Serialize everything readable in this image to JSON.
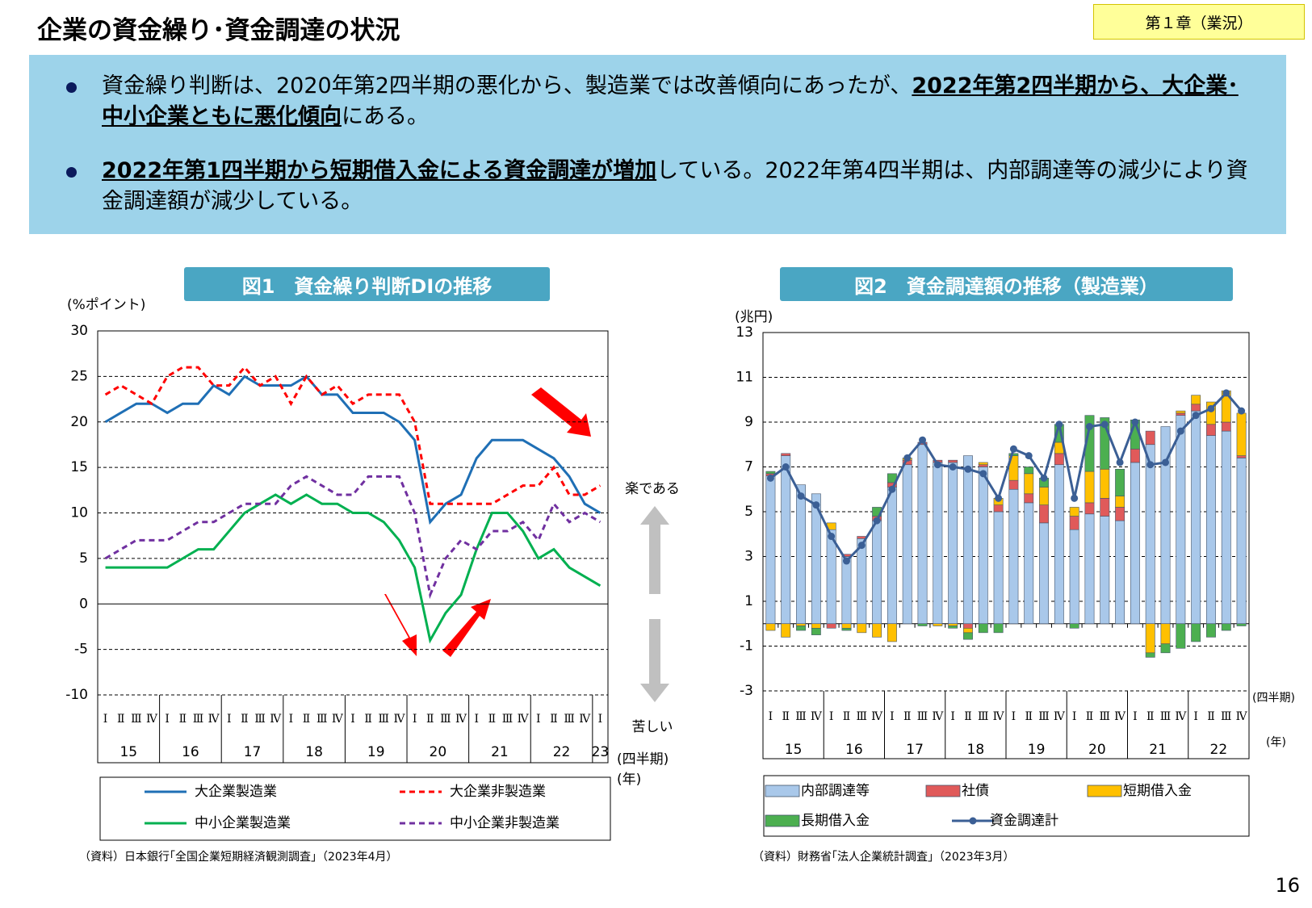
{
  "header": {
    "title": "企業の資金繰り･資金調達の状況",
    "tag": "第１章（業況）"
  },
  "bullets": [
    [
      "資金繰り判断は、2020年第2四半期の悪化から、製造業では改善傾向にあったが、",
      {
        "bold": "2022年第2四半期から、大企業･中小企業ともに悪化傾向"
      },
      "にある。"
    ],
    [
      {
        "bold": "2022年第1四半期から短期借入金による資金調達が増加"
      },
      "している。2022年第4四半期は、内部調達等の減少により資金調達額が減少している。"
    ]
  ],
  "chart_data": [
    {
      "type": "line",
      "title": "図1　資金繰り判断DIの推移",
      "y_unit": "(%ポイント)",
      "x_unit": "(四半期)",
      "x_unit2": "(年)",
      "annotations": [
        "楽である",
        "苦しい"
      ],
      "source": "（資料）日本銀行｢全国企業短期経済観測調査｣（2023年4月）",
      "categories": [
        "Ⅰ",
        "Ⅱ",
        "Ⅲ",
        "Ⅳ",
        "Ⅰ",
        "Ⅱ",
        "Ⅲ",
        "Ⅳ",
        "Ⅰ",
        "Ⅱ",
        "Ⅲ",
        "Ⅳ",
        "Ⅰ",
        "Ⅱ",
        "Ⅲ",
        "Ⅳ",
        "Ⅰ",
        "Ⅱ",
        "Ⅲ",
        "Ⅳ",
        "Ⅰ",
        "Ⅱ",
        "Ⅲ",
        "Ⅳ",
        "Ⅰ",
        "Ⅱ",
        "Ⅲ",
        "Ⅳ",
        "Ⅰ",
        "Ⅱ",
        "Ⅲ",
        "Ⅳ",
        "Ⅰ"
      ],
      "years": [
        "15",
        "16",
        "17",
        "18",
        "19",
        "20",
        "21",
        "22",
        "23"
      ],
      "ylim": [
        -10,
        30
      ],
      "yticks": [
        -10,
        -5,
        0,
        5,
        10,
        15,
        20,
        25,
        30
      ],
      "grid": true,
      "series": [
        {
          "name": "大企業製造業",
          "color": "#1f6fb5",
          "dash": false,
          "values": [
            20,
            21,
            22,
            22,
            21,
            22,
            22,
            24,
            23,
            25,
            24,
            24,
            24,
            25,
            23,
            23,
            21,
            21,
            21,
            20,
            18,
            9,
            11,
            12,
            16,
            18,
            18,
            18,
            17,
            16,
            14,
            11,
            10
          ]
        },
        {
          "name": "大企業非製造業",
          "color": "#ff0000",
          "dash": true,
          "values": [
            23,
            24,
            23,
            22,
            25,
            26,
            26,
            24,
            24,
            26,
            24,
            25,
            22,
            25,
            23,
            24,
            22,
            23,
            23,
            23,
            20,
            11,
            11,
            11,
            11,
            11,
            12,
            13,
            13,
            15,
            12,
            12,
            13
          ]
        },
        {
          "name": "中小企業製造業",
          "color": "#00b050",
          "dash": false,
          "values": [
            4,
            4,
            4,
            4,
            4,
            5,
            6,
            6,
            8,
            10,
            11,
            12,
            11,
            12,
            11,
            11,
            10,
            10,
            9,
            7,
            4,
            -4,
            -1,
            1,
            6,
            10,
            10,
            8,
            5,
            6,
            4,
            3,
            2
          ]
        },
        {
          "name": "中小企業非製造業",
          "color": "#7030a0",
          "dash": true,
          "values": [
            5,
            6,
            7,
            7,
            7,
            8,
            9,
            9,
            10,
            11,
            11,
            11,
            13,
            14,
            13,
            12,
            12,
            14,
            14,
            14,
            10,
            1,
            5,
            7,
            6,
            8,
            8,
            9,
            7,
            11,
            9,
            10,
            9
          ]
        }
      ]
    },
    {
      "type": "bar",
      "stacked": true,
      "title": "図2　資金調達額の推移（製造業）",
      "y_unit": "(兆円)",
      "x_unit": "(四半期)",
      "x_unit2": "(年)",
      "source": "（資料）財務省｢法人企業統計調査｣（2023年3月）",
      "categories": [
        "Ⅰ",
        "Ⅱ",
        "Ⅲ",
        "Ⅳ",
        "Ⅰ",
        "Ⅱ",
        "Ⅲ",
        "Ⅳ",
        "Ⅰ",
        "Ⅱ",
        "Ⅲ",
        "Ⅳ",
        "Ⅰ",
        "Ⅱ",
        "Ⅲ",
        "Ⅳ",
        "Ⅰ",
        "Ⅱ",
        "Ⅲ",
        "Ⅳ",
        "Ⅰ",
        "Ⅱ",
        "Ⅲ",
        "Ⅳ",
        "Ⅰ",
        "Ⅱ",
        "Ⅲ",
        "Ⅳ",
        "Ⅰ",
        "Ⅱ",
        "Ⅲ",
        "Ⅳ"
      ],
      "years": [
        "15",
        "16",
        "17",
        "18",
        "19",
        "20",
        "21",
        "22"
      ],
      "ylim": [
        -3,
        13
      ],
      "yticks": [
        -3,
        -1,
        1,
        3,
        5,
        7,
        9,
        11,
        13
      ],
      "grid": true,
      "series": [
        {
          "name": "内部調達等",
          "color": "#a9c8ea",
          "values": [
            6.6,
            7.5,
            6.2,
            5.8,
            4.2,
            3.0,
            3.8,
            4.6,
            6.1,
            7.1,
            8.0,
            7.2,
            7.2,
            7.5,
            7.0,
            5.0,
            6.0,
            5.4,
            4.5,
            7.1,
            4.2,
            4.9,
            4.8,
            4.6,
            7.2,
            8.0,
            8.8,
            9.3,
            9.5,
            8.4,
            8.6,
            7.4
          ]
        },
        {
          "name": "社債",
          "color": "#e05a5a",
          "values": [
            0.1,
            0.1,
            0,
            0,
            -0.2,
            0.1,
            0.1,
            0.2,
            0.2,
            0.2,
            0.1,
            0.1,
            0.1,
            -0.2,
            0.1,
            0.3,
            0.4,
            0.4,
            0.8,
            0.5,
            0.6,
            0.5,
            0.8,
            0.6,
            0.6,
            0.6,
            0,
            0.1,
            0.3,
            0.5,
            0.4,
            0.1
          ]
        },
        {
          "name": "短期借入金",
          "color": "#ffc000",
          "values": [
            -0.3,
            -0.6,
            -0.1,
            -0.2,
            0.3,
            -0.2,
            -0.4,
            -0.6,
            -0.8,
            0.1,
            0,
            -0.1,
            -0.1,
            -0.2,
            0.1,
            0.3,
            1.1,
            0.9,
            0.8,
            0.5,
            0.4,
            1.4,
            1.3,
            0.5,
            0,
            -1.3,
            -0.9,
            0.1,
            0.4,
            1.0,
            1.4,
            1.9
          ]
        },
        {
          "name": "長期借入金",
          "color": "#4caf50",
          "values": [
            0.1,
            0,
            -0.2,
            -0.3,
            0,
            -0.1,
            0,
            0.4,
            0.4,
            0,
            -0.1,
            0,
            -0.1,
            -0.3,
            -0.4,
            -0.4,
            0.1,
            0.3,
            0.4,
            0.8,
            -0.2,
            2.5,
            2.3,
            1.2,
            1.3,
            -0.2,
            -0.4,
            -1.1,
            -0.8,
            -0.6,
            -0.3,
            -0.1
          ]
        },
        {
          "name": "資金調達計",
          "type": "line",
          "color": "#3b5f95",
          "values": [
            6.5,
            7.0,
            5.7,
            5.3,
            3.9,
            2.8,
            3.5,
            4.6,
            6.0,
            7.4,
            8.2,
            7.1,
            7.0,
            6.9,
            6.7,
            5.6,
            7.8,
            7.5,
            6.5,
            8.9,
            5.6,
            8.8,
            8.9,
            7.2,
            9.0,
            7.1,
            7.2,
            8.6,
            9.3,
            9.6,
            10.3,
            9.5
          ]
        }
      ]
    }
  ],
  "page_number": "16"
}
